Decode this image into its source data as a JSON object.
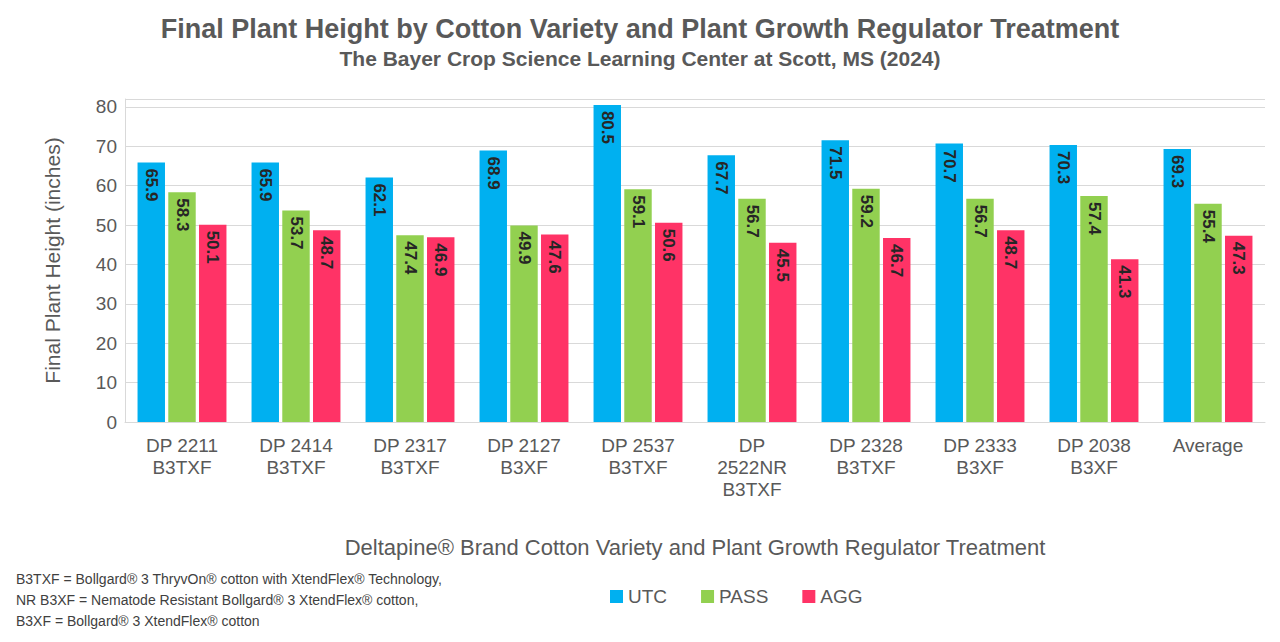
{
  "chart_data": {
    "type": "bar",
    "title": "Final Plant Height by Cotton Variety and Plant Growth Regulator Treatment",
    "subtitle": "The Bayer Crop Science Learning Center at Scott, MS (2024)",
    "x_label": "Deltapine® Brand Cotton Variety and Plant Growth Regulator Treatment",
    "y_label": "Final Plant Height (inches)",
    "annotations": [
      "B3TXF = Bollgard® 3 ThryvOn® cotton with XtendFlex® Technology,",
      "NR B3XF = Nematode Resistant Bollgard® 3 XtendFlex® cotton,",
      "B3XF = Bollgard® 3 XtendFlex® cotton"
    ],
    "categories": [
      "DP 2211\nB3TXF",
      "DP 2414\nB3TXF",
      "DP 2317\nB3TXF",
      "DP 2127\nB3XF",
      "DP 2537\nB3TXF",
      "DP\n2522NR\nB3TXF",
      "DP 2328\nB3TXF",
      "DP 2333\nB3XF",
      "DP 2038\nB3XF",
      "Average"
    ],
    "series": [
      {
        "name": "UTC",
        "color": "#00b0f0",
        "values": [
          65.9,
          65.9,
          62.1,
          68.9,
          80.5,
          67.7,
          71.5,
          70.7,
          70.3,
          69.3
        ]
      },
      {
        "name": "PASS",
        "color": "#92d050",
        "values": [
          58.3,
          53.7,
          47.4,
          49.9,
          59.1,
          56.7,
          59.2,
          56.7,
          57.4,
          55.4
        ]
      },
      {
        "name": "AGG",
        "color": "#ff3366",
        "values": [
          50.1,
          48.7,
          46.9,
          47.6,
          50.6,
          45.5,
          46.7,
          48.7,
          41.3,
          47.3
        ]
      }
    ],
    "ylim": [
      0,
      82
    ],
    "yticks": [
      0,
      10,
      20,
      30,
      40,
      50,
      60,
      70,
      80
    ],
    "grid": true,
    "legend": "bottom",
    "data_labels": true
  }
}
